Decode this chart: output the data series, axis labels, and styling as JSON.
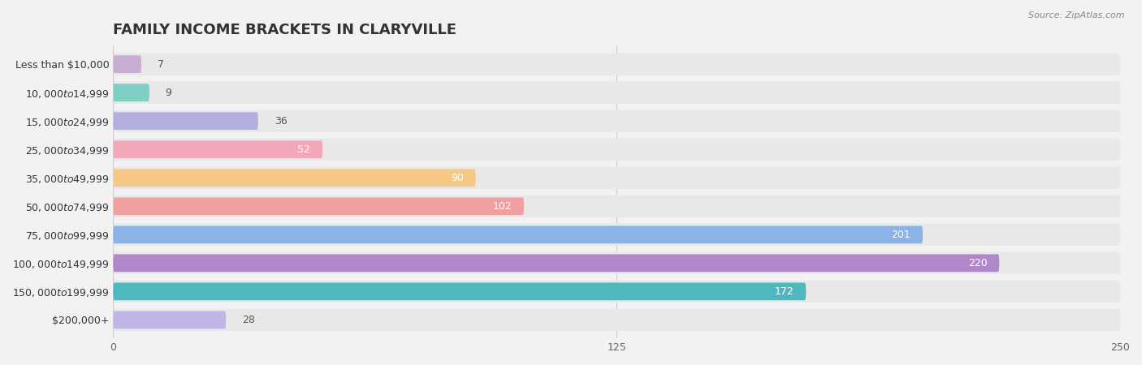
{
  "title": "FAMILY INCOME BRACKETS IN CLARYVILLE",
  "source": "Source: ZipAtlas.com",
  "categories": [
    "Less than $10,000",
    "$10,000 to $14,999",
    "$15,000 to $24,999",
    "$25,000 to $34,999",
    "$35,000 to $49,999",
    "$50,000 to $74,999",
    "$75,000 to $99,999",
    "$100,000 to $149,999",
    "$150,000 to $199,999",
    "$200,000+"
  ],
  "values": [
    7,
    9,
    36,
    52,
    90,
    102,
    201,
    220,
    172,
    28
  ],
  "bar_colors": [
    "#c9aed4",
    "#7ecfc4",
    "#b3aee0",
    "#f4a7b8",
    "#f5c886",
    "#f0a0a0",
    "#8ab4e8",
    "#b088c8",
    "#4db8c0",
    "#c0b4e8"
  ],
  "xlim": [
    0,
    250
  ],
  "xticks": [
    0,
    125,
    250
  ],
  "bg_color": "#f2f2f2",
  "bar_bg_color": "#e8e8e8",
  "row_bg_color": "#f2f2f2",
  "title_fontsize": 13,
  "label_fontsize": 9,
  "value_fontsize": 9
}
